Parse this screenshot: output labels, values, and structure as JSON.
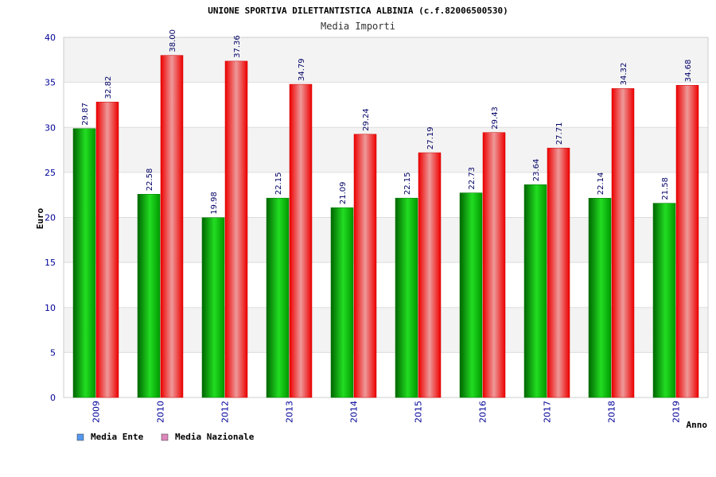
{
  "chart_data": {
    "type": "bar",
    "title": "UNIONE SPORTIVA DILETTANTISTICA ALBINIA (c.f.82006500530)",
    "subtitle": "Media Importi",
    "xlabel": "Anno",
    "ylabel": "Euro",
    "ylim": [
      0,
      40
    ],
    "yticks": [
      "0",
      "5",
      "10",
      "15",
      "20",
      "25",
      "30",
      "35",
      "40"
    ],
    "categories": [
      "2009",
      "2010",
      "2012",
      "2013",
      "2014",
      "2015",
      "2016",
      "2017",
      "2018",
      "2019"
    ],
    "series": [
      {
        "name": "Media Ente",
        "values": [
          29.87,
          22.58,
          19.98,
          22.15,
          21.09,
          22.15,
          22.73,
          23.64,
          22.14,
          21.58
        ],
        "labels": [
          "29.87",
          "22.58",
          "19.98",
          "22.15",
          "21.09",
          "22.15",
          "22.73",
          "23.64",
          "22.14",
          "21.58"
        ],
        "color": "#00b000"
      },
      {
        "name": "Media Nazionale",
        "values": [
          32.82,
          38.0,
          37.36,
          34.79,
          29.24,
          27.19,
          29.43,
          27.71,
          34.32,
          34.68
        ],
        "labels": [
          "32.82",
          "38.00",
          "37.36",
          "34.79",
          "29.24",
          "27.19",
          "29.43",
          "27.71",
          "34.32",
          "34.68"
        ],
        "color": "#ee1111"
      }
    ],
    "legend": [
      {
        "label": "Media Ente",
        "swatch": "#5599ee"
      },
      {
        "label": "Media Nazionale",
        "swatch": "#dd88bb"
      }
    ],
    "legend_position": "bottom-left",
    "grid": true
  }
}
